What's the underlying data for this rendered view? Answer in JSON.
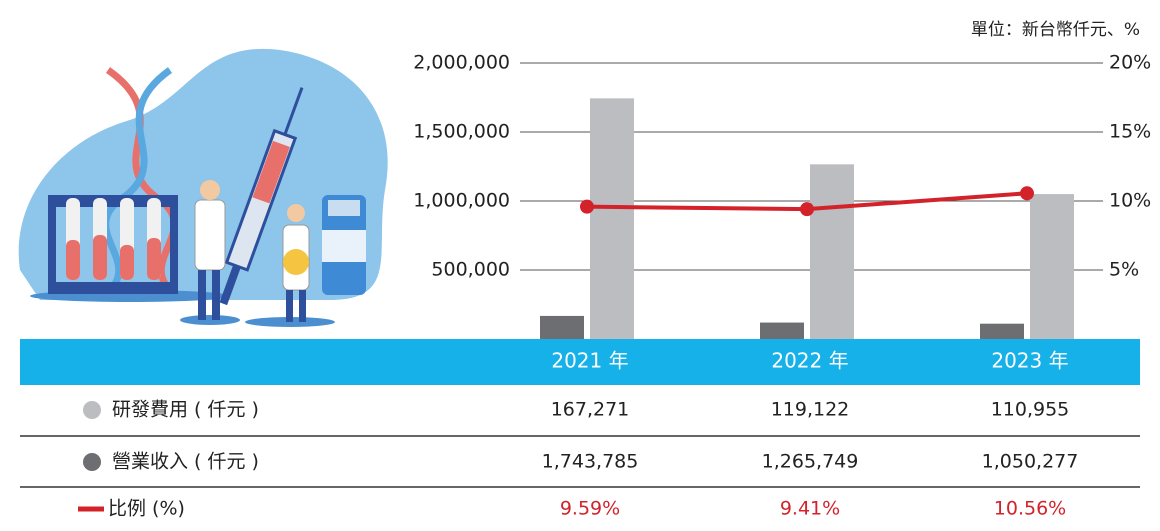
{
  "chart_data": {
    "type": "bar_line",
    "unit_note": "單位：新台幣仟元、%",
    "categories": [
      "2021 年",
      "2022 年",
      "2023 年"
    ],
    "series": [
      {
        "name": "研發費用 ( 仟元 )",
        "color": "#6d6e71",
        "legend_color": "#bcbdc0",
        "values": [
          167271,
          119122,
          110955
        ],
        "value_labels": [
          "167,271",
          "119,122",
          "110,955"
        ]
      },
      {
        "name": "營業收入 ( 仟元 )",
        "color": "#bcbdc0",
        "legend_color": "#6d6e71",
        "values": [
          1743785,
          1265749,
          1050277
        ],
        "value_labels": [
          "1,743,785",
          "1,265,749",
          "1,050,277"
        ]
      },
      {
        "name": "比例 (%)",
        "type": "line",
        "axis": "y2",
        "color": "#d3222a",
        "values": [
          9.59,
          9.41,
          10.56
        ],
        "value_labels": [
          "9.59%",
          "9.41%",
          "10.56%"
        ]
      }
    ],
    "ylim": [
      0,
      2000000
    ],
    "yticks": [
      {
        "value": 500000,
        "label": "500,000"
      },
      {
        "value": 1000000,
        "label": "1,000,000"
      },
      {
        "value": 1500000,
        "label": "1,500,000"
      },
      {
        "value": 2000000,
        "label": "2,000,000"
      }
    ],
    "y2lim": [
      0,
      20
    ],
    "y2ticks": [
      {
        "value": 5,
        "label": "5%"
      },
      {
        "value": 10,
        "label": "10%"
      },
      {
        "value": 15,
        "label": "15%"
      },
      {
        "value": 20,
        "label": "20%"
      }
    ],
    "grid": true,
    "header_color": "#17b1ea"
  }
}
